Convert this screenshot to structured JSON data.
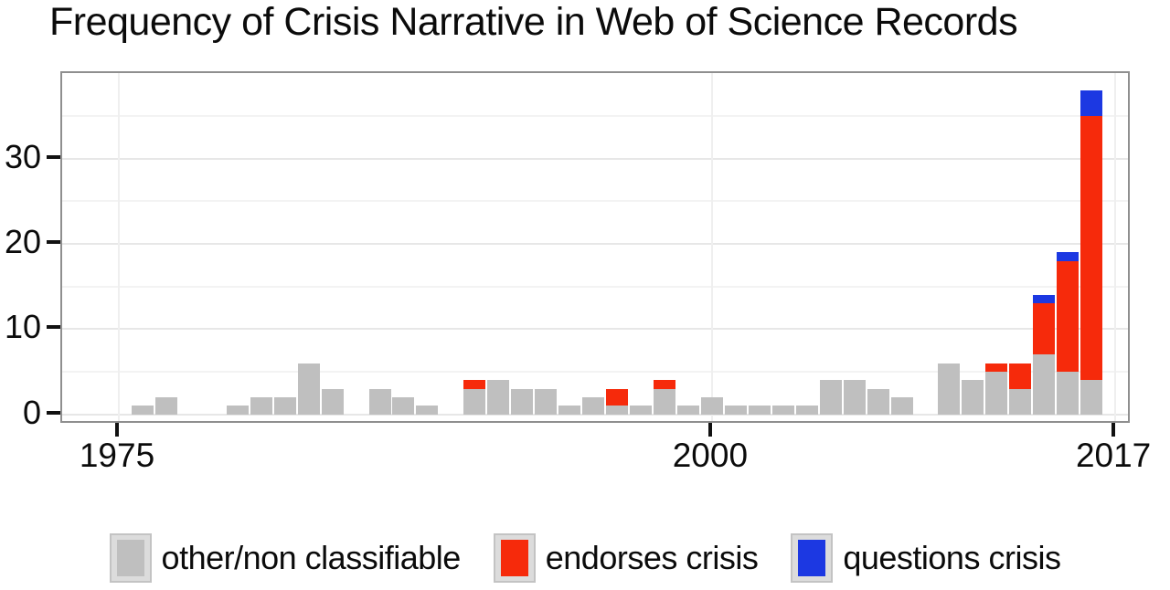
{
  "chart_data": {
    "type": "bar",
    "stacked": true,
    "title": "Frequency of Crisis Narrative in Web of Science Records",
    "xlabel": "",
    "ylabel": "",
    "years": [
      1976,
      1977,
      1978,
      1979,
      1980,
      1981,
      1982,
      1983,
      1984,
      1985,
      1986,
      1987,
      1988,
      1989,
      1990,
      1991,
      1992,
      1993,
      1994,
      1995,
      1996,
      1997,
      1998,
      1999,
      2000,
      2001,
      2002,
      2003,
      2004,
      2005,
      2006,
      2007,
      2008,
      2009,
      2010,
      2011,
      2012,
      2013,
      2014,
      2015,
      2016
    ],
    "series": [
      {
        "name": "other/non classifiable",
        "color": "#bfbfbf",
        "values": [
          1,
          2,
          0,
          0,
          1,
          2,
          2,
          6,
          3,
          0,
          3,
          2,
          1,
          0,
          3,
          4,
          3,
          3,
          1,
          2,
          1,
          1,
          3,
          1,
          2,
          1,
          1,
          1,
          1,
          4,
          4,
          3,
          2,
          0,
          6,
          4,
          5,
          3,
          7,
          5,
          4
        ]
      },
      {
        "name": "endorses crisis",
        "color": "#f62a0b",
        "values": [
          0,
          0,
          0,
          0,
          0,
          0,
          0,
          0,
          0,
          0,
          0,
          0,
          0,
          0,
          1,
          0,
          0,
          0,
          0,
          0,
          2,
          0,
          1,
          0,
          0,
          0,
          0,
          0,
          0,
          0,
          0,
          0,
          0,
          0,
          0,
          0,
          1,
          3,
          6,
          13,
          31
        ]
      },
      {
        "name": "questions crisis",
        "color": "#1c38e2",
        "values": [
          0,
          0,
          0,
          0,
          0,
          0,
          0,
          0,
          0,
          0,
          0,
          0,
          0,
          0,
          0,
          0,
          0,
          0,
          0,
          0,
          0,
          0,
          0,
          0,
          0,
          0,
          0,
          0,
          0,
          0,
          0,
          0,
          0,
          0,
          0,
          0,
          0,
          0,
          1,
          1,
          3
        ]
      }
    ],
    "x_ticks": [
      "1975",
      "2000",
      "2017"
    ],
    "y_ticks": [
      "0",
      "10",
      "20",
      "30"
    ],
    "xlim": [
      1972.6,
      2017.7
    ],
    "ylim": [
      0,
      40
    ],
    "grid": {
      "major": [
        0,
        10,
        20,
        30
      ],
      "minor": [
        5,
        15,
        25,
        35
      ]
    },
    "legend_position": "bottom"
  }
}
